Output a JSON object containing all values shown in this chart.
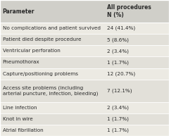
{
  "col1_header": "Parameter",
  "col2_header": "All procedures\nN (%)",
  "rows": [
    [
      "No complications and patient survived",
      "24 (41.4%)"
    ],
    [
      "Patient died despite procedure",
      "5 (8.6%)"
    ],
    [
      "Ventricular perforation",
      "2 (3.4%)"
    ],
    [
      "Pneumothorax",
      "1 (1.7%)"
    ],
    [
      "Capture/positioning problems",
      "12 (20.7%)"
    ],
    [
      "Access site problems (including\narterial puncture, infection, bleeding)",
      "7 (12.1%)"
    ],
    [
      "Line infection",
      "2 (3.4%)"
    ],
    [
      "Knot in wire",
      "1 (1.7%)"
    ],
    [
      "Atrial fibrillation",
      "1 (1.7%)"
    ]
  ],
  "header_bg": "#d0cfc9",
  "row_bg_light": "#eceae3",
  "row_bg_dark": "#e2e0d9",
  "text_color": "#2a2a2a",
  "font_size": 5.2,
  "header_font_size": 5.5,
  "col_split": 0.615,
  "fig_bg": "#cbc9c2",
  "border_color": "#ffffff",
  "row_line_color": "#ffffff"
}
